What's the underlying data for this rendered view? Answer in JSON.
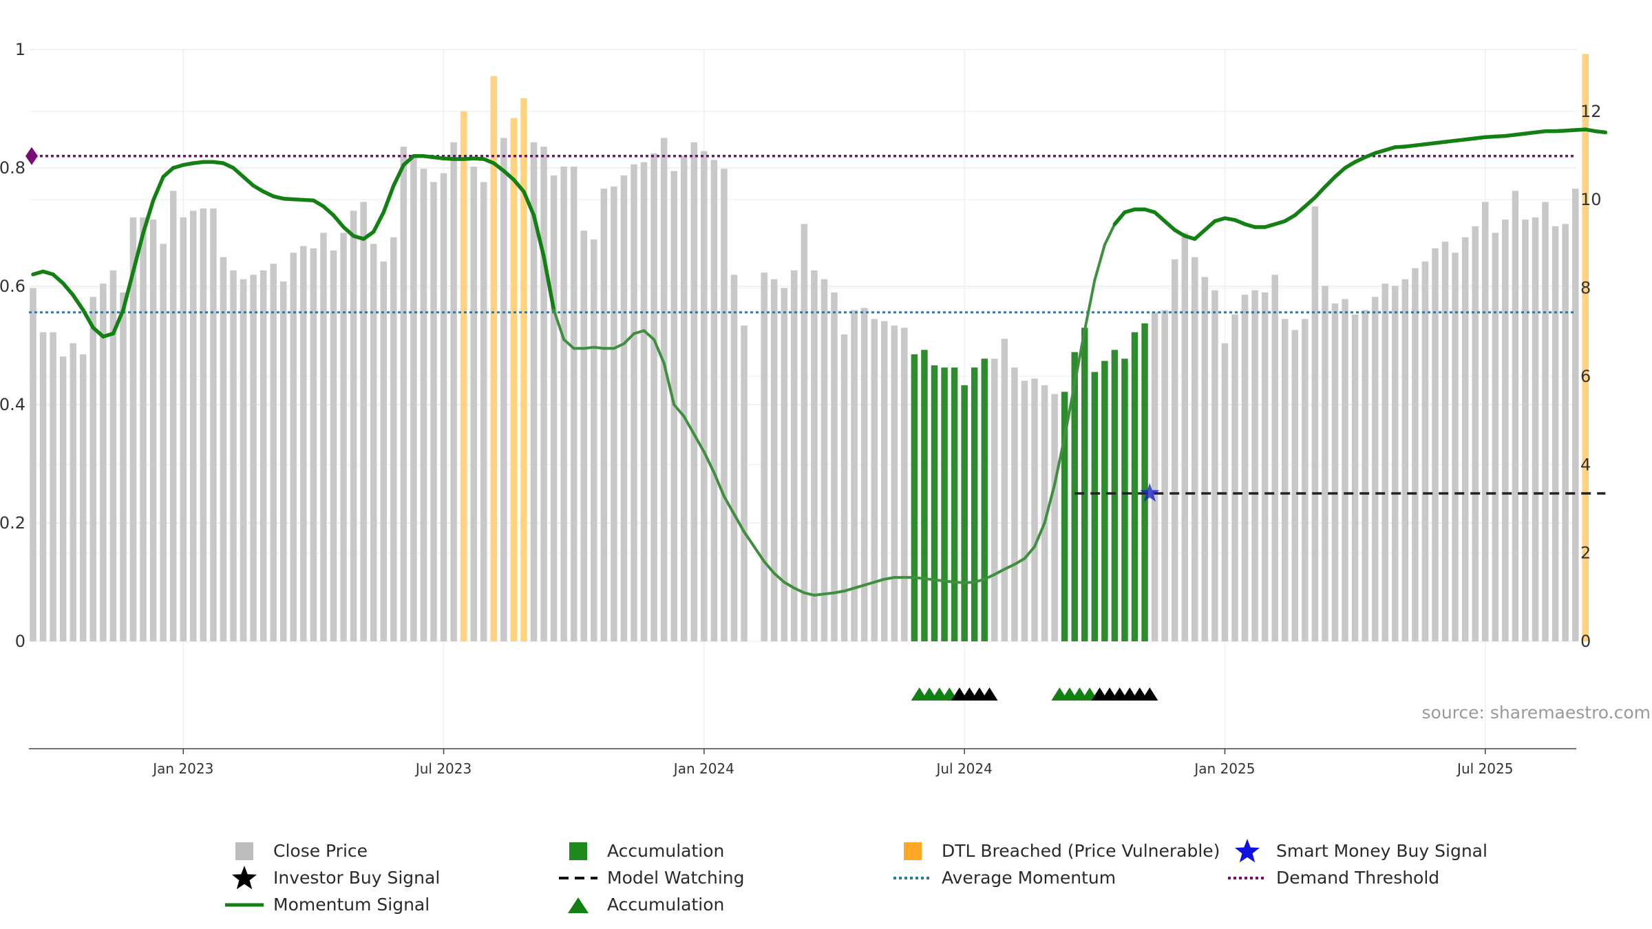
{
  "chart_data": {
    "type": "bar",
    "title": "",
    "source": "source: sharemaestro.com",
    "x_ticks": [
      "Jan 2023",
      "Jul 2023",
      "Jan 2024",
      "Jul 2024",
      "Jan 2025",
      "Jul 2025"
    ],
    "x_ticks_index": [
      15,
      41,
      67,
      93,
      119,
      145
    ],
    "left_axis": {
      "ticks": [
        "0",
        "0.2",
        "0.4",
        "0.6",
        "0.8",
        "1"
      ],
      "range": [
        0,
        1
      ]
    },
    "right_axis": {
      "ticks": [
        "0",
        "2",
        "4",
        "6",
        "8",
        "10",
        "12"
      ],
      "range": [
        0,
        13.4
      ]
    },
    "grid": true,
    "legend_position": "bottom",
    "colors": {
      "close_price": "#c8c8c8",
      "accumulation": "#2e8b2e",
      "dtl_breached": "#ffd27f",
      "momentum": "#128012",
      "average_momentum": "#2a7a9b",
      "demand_threshold": "#7a0a7a",
      "model_watching": "#222222",
      "smart_money": "#1a23c8",
      "investor": "#000000"
    },
    "price_values": [
      8.0,
      7.0,
      7.0,
      6.45,
      6.75,
      6.5,
      7.8,
      8.1,
      8.4,
      7.9,
      9.6,
      9.6,
      9.55,
      9.0,
      10.2,
      9.6,
      9.75,
      9.8,
      9.8,
      8.7,
      8.4,
      8.2,
      8.3,
      8.4,
      8.55,
      8.15,
      8.8,
      8.95,
      8.9,
      9.25,
      8.85,
      9.25,
      9.75,
      9.95,
      9.0,
      8.6,
      9.15,
      11.2,
      11.0,
      10.7,
      10.4,
      10.6,
      11.3,
      12.0,
      10.75,
      10.4,
      12.8,
      11.4,
      11.85,
      12.3,
      11.3,
      11.2,
      10.55,
      10.75,
      10.75,
      9.3,
      9.1,
      10.25,
      10.3,
      10.55,
      10.8,
      10.85,
      11.05,
      11.4,
      10.65,
      11.0,
      11.3,
      11.1,
      10.9,
      10.7,
      8.3,
      7.15,
      0.0,
      8.35,
      8.2,
      8.0,
      8.4,
      9.45,
      8.4,
      8.2,
      7.9,
      6.95,
      7.5,
      7.55,
      7.3,
      7.25,
      7.15,
      7.1,
      6.5,
      6.6,
      6.25,
      6.2,
      6.2,
      5.8,
      6.2,
      6.4,
      6.4,
      6.85,
      6.2,
      5.9,
      5.95,
      5.8,
      5.6,
      5.65,
      6.55,
      7.1,
      6.1,
      6.35,
      6.6,
      6.4,
      7.0,
      7.2,
      7.45,
      7.5,
      8.65,
      9.25,
      8.7,
      8.25,
      7.95,
      6.75,
      7.4,
      7.85,
      7.95,
      7.9,
      8.3,
      7.3,
      7.05,
      7.3,
      9.85,
      8.05,
      7.65,
      7.75,
      7.4,
      7.5,
      7.8,
      8.1,
      8.05,
      8.2,
      8.45,
      8.6,
      8.9,
      9.05,
      8.8,
      9.15,
      9.4,
      9.95,
      9.25,
      9.55,
      10.2,
      9.55,
      9.6,
      9.95,
      9.4,
      9.45,
      10.25,
      13.3
    ],
    "accumulation_index": [
      88,
      89,
      90,
      91,
      92,
      93,
      94,
      95,
      103,
      104,
      105,
      106,
      107,
      108,
      109,
      110,
      111
    ],
    "dtl_breached_index": [
      43,
      46,
      48,
      49,
      155
    ],
    "momentum_values": [
      0.62,
      0.625,
      0.62,
      0.605,
      0.585,
      0.56,
      0.53,
      0.515,
      0.52,
      0.56,
      0.625,
      0.69,
      0.745,
      0.785,
      0.8,
      0.805,
      0.808,
      0.81,
      0.81,
      0.808,
      0.8,
      0.785,
      0.77,
      0.76,
      0.752,
      0.748,
      0.747,
      0.746,
      0.745,
      0.735,
      0.72,
      0.7,
      0.685,
      0.68,
      0.692,
      0.725,
      0.77,
      0.805,
      0.82,
      0.82,
      0.818,
      0.816,
      0.815,
      0.815,
      0.816,
      0.815,
      0.808,
      0.795,
      0.78,
      0.76,
      0.72,
      0.65,
      0.56,
      0.51,
      0.495,
      0.495,
      0.497,
      0.495,
      0.495,
      0.503,
      0.52,
      0.525,
      0.51,
      0.47,
      0.4,
      0.38,
      0.35,
      0.32,
      0.285,
      0.245,
      0.215,
      0.185,
      0.16,
      0.135,
      0.115,
      0.1,
      0.09,
      0.082,
      0.078,
      0.08,
      0.082,
      0.085,
      0.09,
      0.095,
      0.1,
      0.105,
      0.108,
      0.108,
      0.108,
      0.106,
      0.104,
      0.102,
      0.1,
      0.099,
      0.1,
      0.105,
      0.113,
      0.122,
      0.13,
      0.14,
      0.16,
      0.2,
      0.265,
      0.345,
      0.435,
      0.525,
      0.61,
      0.67,
      0.705,
      0.725,
      0.73,
      0.73,
      0.725,
      0.71,
      0.695,
      0.685,
      0.68,
      0.695,
      0.71,
      0.715,
      0.712,
      0.705,
      0.7,
      0.7,
      0.705,
      0.71,
      0.72,
      0.735,
      0.75,
      0.768,
      0.785,
      0.8,
      0.81,
      0.818,
      0.825,
      0.83,
      0.835,
      0.836,
      0.838,
      0.84,
      0.842,
      0.844,
      0.846,
      0.848,
      0.85,
      0.852,
      0.853,
      0.854,
      0.856,
      0.858,
      0.86,
      0.862,
      0.862,
      0.863,
      0.864,
      0.865,
      0.862,
      0.86
    ],
    "average_momentum": 0.556,
    "demand_threshold": 0.82,
    "model_watching": {
      "value": 0.25,
      "from_index": 104,
      "to_index": 157
    },
    "smart_money_buy_signal": {
      "index": 111.5,
      "value": 0.25
    },
    "accumulation_triangles_index": [
      88.5,
      89.5,
      90.5,
      91.5,
      102.5,
      103.5,
      104.5,
      105.5
    ],
    "investor_triangles_index": [
      92.5,
      93.5,
      94.5,
      95.5,
      106.5,
      107.5,
      108.5,
      109.5,
      110.5,
      111.5
    ],
    "demand_marker": {
      "index": 0,
      "value": 0.82
    },
    "legend": [
      {
        "id": "close_price",
        "label": "Close Price"
      },
      {
        "id": "accumulation_bar",
        "label": "Accumulation"
      },
      {
        "id": "dtl",
        "label": "DTL Breached (Price Vulnerable)"
      },
      {
        "id": "smart_money",
        "label": "Smart Money Buy Signal"
      },
      {
        "id": "investor",
        "label": "Investor Buy Signal"
      },
      {
        "id": "model_watching",
        "label": "Model Watching"
      },
      {
        "id": "avg_momentum",
        "label": "Average Momentum"
      },
      {
        "id": "demand",
        "label": "Demand Threshold"
      },
      {
        "id": "momentum",
        "label": "Momentum Signal"
      },
      {
        "id": "accumulation_triangle",
        "label": "Accumulation"
      }
    ]
  }
}
